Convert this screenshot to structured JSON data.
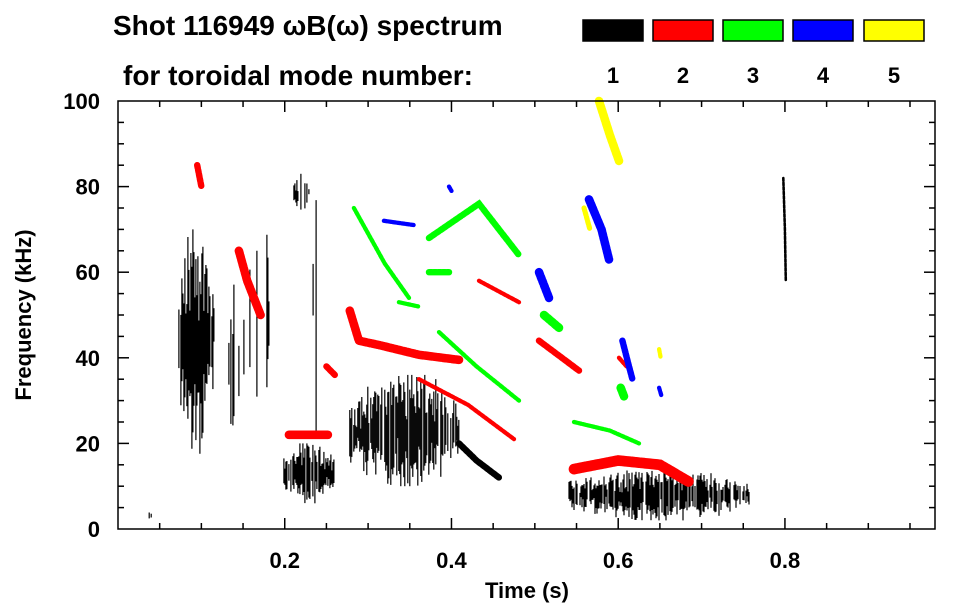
{
  "chart_data": {
    "type": "heatmap",
    "title_line1": "Shot 116949 ωB(ω) spectrum",
    "title_line2": "for toroidal mode number:",
    "xlabel": "Time (s)",
    "ylabel": "Frequency (kHz)",
    "xlim": [
      0,
      0.98
    ],
    "ylim": [
      0,
      100
    ],
    "xticks": [
      {
        "v": 0.2,
        "label": "0.2"
      },
      {
        "v": 0.4,
        "label": "0.4"
      },
      {
        "v": 0.6,
        "label": "0.6"
      },
      {
        "v": 0.8,
        "label": "0.8"
      }
    ],
    "xminor_step": 0.05,
    "yticks": [
      {
        "v": 0,
        "label": "0"
      },
      {
        "v": 20,
        "label": "20"
      },
      {
        "v": 40,
        "label": "40"
      },
      {
        "v": 60,
        "label": "60"
      },
      {
        "v": 80,
        "label": "80"
      },
      {
        "v": 100,
        "label": "100"
      }
    ],
    "yminor_step": 5,
    "legend": [
      {
        "mode": "1",
        "color": "#000000"
      },
      {
        "mode": "2",
        "color": "#ff0000"
      },
      {
        "mode": "3",
        "color": "#00ff00"
      },
      {
        "mode": "4",
        "color": "#0000ff"
      },
      {
        "mode": "5",
        "color": "#ffff00"
      }
    ],
    "blobs": [
      {
        "mode": 1,
        "t": [
          0.073,
          0.115
        ],
        "f": [
          16,
          70
        ],
        "density": 0.9
      },
      {
        "mode": 1,
        "t": [
          0.133,
          0.151
        ],
        "f": [
          18,
          60
        ],
        "density": 0.5
      },
      {
        "mode": 1,
        "t": [
          0.157,
          0.181
        ],
        "f": [
          20,
          86
        ],
        "density": 0.3
      },
      {
        "mode": 1,
        "t": [
          0.199,
          0.259
        ],
        "f": [
          6,
          20
        ],
        "density": 0.8
      },
      {
        "mode": 1,
        "t": [
          0.211,
          0.229
        ],
        "f": [
          74,
          83
        ],
        "density": 0.7
      },
      {
        "mode": 1,
        "t": [
          0.234,
          0.24
        ],
        "f": [
          20,
          80
        ],
        "density": 0.4
      },
      {
        "mode": 1,
        "t": [
          0.278,
          0.409
        ],
        "f": [
          10,
          36
        ],
        "density": 0.85
      },
      {
        "mode": 1,
        "t": [
          0.541,
          0.757
        ],
        "f": [
          2,
          14
        ],
        "density": 0.8
      },
      {
        "mode": 1,
        "t": [
          0.035,
          0.04
        ],
        "f": [
          2,
          4
        ],
        "density": 0.5
      }
    ],
    "ridges": [
      {
        "mode": 1,
        "df": 1.5,
        "pts": [
          [
            0.409,
            20
          ],
          [
            0.43,
            16
          ],
          [
            0.457,
            12
          ]
        ]
      },
      {
        "mode": 1,
        "df": 0.6,
        "pts": [
          [
            0.798,
            82
          ],
          [
            0.8,
            70
          ],
          [
            0.801,
            58
          ]
        ]
      },
      {
        "mode": 2,
        "df": 1.5,
        "pts": [
          [
            0.095,
            85
          ],
          [
            0.1,
            80
          ]
        ]
      },
      {
        "mode": 2,
        "df": 2,
        "pts": [
          [
            0.145,
            65
          ],
          [
            0.155,
            58
          ],
          [
            0.171,
            50
          ]
        ]
      },
      {
        "mode": 2,
        "df": 2,
        "pts": [
          [
            0.205,
            22
          ],
          [
            0.253,
            22
          ]
        ]
      },
      {
        "mode": 2,
        "df": 2,
        "pts": [
          [
            0.278,
            51
          ],
          [
            0.289,
            44
          ],
          [
            0.313,
            43
          ],
          [
            0.361,
            40.7
          ],
          [
            0.409,
            39.5
          ]
        ]
      },
      {
        "mode": 2,
        "df": 1.5,
        "pts": [
          [
            0.25,
            38
          ],
          [
            0.26,
            36
          ]
        ]
      },
      {
        "mode": 2,
        "df": 1,
        "pts": [
          [
            0.361,
            35
          ],
          [
            0.42,
            29
          ],
          [
            0.475,
            21
          ]
        ]
      },
      {
        "mode": 2,
        "df": 1,
        "pts": [
          [
            0.433,
            58
          ],
          [
            0.481,
            53
          ]
        ]
      },
      {
        "mode": 2,
        "df": 1.5,
        "pts": [
          [
            0.505,
            44
          ],
          [
            0.553,
            37
          ]
        ]
      },
      {
        "mode": 2,
        "df": 2.5,
        "pts": [
          [
            0.547,
            14
          ],
          [
            0.6,
            16
          ],
          [
            0.65,
            15
          ],
          [
            0.685,
            11
          ]
        ]
      },
      {
        "mode": 2,
        "df": 1,
        "pts": [
          [
            0.601,
            40
          ],
          [
            0.61,
            38
          ]
        ]
      },
      {
        "mode": 3,
        "df": 1,
        "pts": [
          [
            0.283,
            75
          ],
          [
            0.32,
            62
          ],
          [
            0.349,
            54
          ]
        ]
      },
      {
        "mode": 3,
        "df": 1.5,
        "pts": [
          [
            0.373,
            68
          ],
          [
            0.433,
            76
          ],
          [
            0.481,
            64
          ]
        ]
      },
      {
        "mode": 3,
        "df": 1.5,
        "pts": [
          [
            0.373,
            60
          ],
          [
            0.397,
            60
          ]
        ]
      },
      {
        "mode": 3,
        "df": 1,
        "pts": [
          [
            0.337,
            53
          ],
          [
            0.36,
            52
          ]
        ]
      },
      {
        "mode": 3,
        "df": 1,
        "pts": [
          [
            0.385,
            46
          ],
          [
            0.43,
            38
          ],
          [
            0.481,
            30
          ]
        ]
      },
      {
        "mode": 3,
        "df": 2,
        "pts": [
          [
            0.511,
            50
          ],
          [
            0.529,
            47
          ]
        ]
      },
      {
        "mode": 3,
        "df": 1,
        "pts": [
          [
            0.547,
            25
          ],
          [
            0.59,
            23
          ],
          [
            0.625,
            20
          ]
        ]
      },
      {
        "mode": 3,
        "df": 2,
        "pts": [
          [
            0.603,
            33
          ],
          [
            0.607,
            31
          ]
        ]
      },
      {
        "mode": 4,
        "df": 1,
        "pts": [
          [
            0.319,
            72
          ],
          [
            0.355,
            71
          ]
        ]
      },
      {
        "mode": 4,
        "df": 1,
        "pts": [
          [
            0.397,
            80
          ],
          [
            0.4,
            79
          ]
        ]
      },
      {
        "mode": 4,
        "df": 2,
        "pts": [
          [
            0.505,
            60
          ],
          [
            0.517,
            54
          ]
        ]
      },
      {
        "mode": 4,
        "df": 2,
        "pts": [
          [
            0.565,
            77
          ],
          [
            0.58,
            70
          ],
          [
            0.589,
            63
          ]
        ]
      },
      {
        "mode": 4,
        "df": 1.5,
        "pts": [
          [
            0.605,
            44
          ],
          [
            0.613,
            38
          ],
          [
            0.617,
            35
          ]
        ]
      },
      {
        "mode": 4,
        "df": 1,
        "pts": [
          [
            0.649,
            33
          ],
          [
            0.652,
            31
          ]
        ]
      },
      {
        "mode": 5,
        "df": 2,
        "pts": [
          [
            0.577,
            100
          ],
          [
            0.59,
            92
          ],
          [
            0.601,
            86
          ]
        ]
      },
      {
        "mode": 5,
        "df": 1.2,
        "pts": [
          [
            0.559,
            75
          ],
          [
            0.566,
            70
          ]
        ]
      },
      {
        "mode": 5,
        "df": 1,
        "pts": [
          [
            0.649,
            42
          ],
          [
            0.651,
            40
          ]
        ]
      }
    ]
  }
}
